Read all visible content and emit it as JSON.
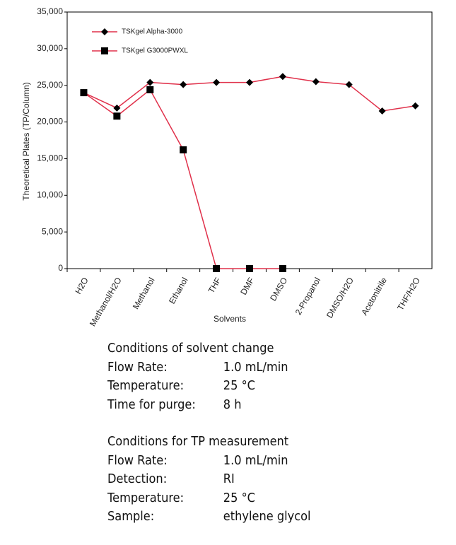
{
  "chart_data": {
    "type": "line",
    "y_label": "Theoretical Plates (TP/Column)",
    "x_label": "Solvents",
    "categories": [
      "H2O",
      "Methanol/H2O",
      "Methanol",
      "Ethanol",
      "THF",
      "DMF",
      "DMSO",
      "2-Propanol",
      "DMSO/H2O",
      "Acetonitrile",
      "THF/H2O"
    ],
    "series": [
      {
        "name": "TSKgel Alpha-3000",
        "color": "#e0304a",
        "marker": "diamond",
        "marker_color": "#000000",
        "values": [
          24000,
          21900,
          25400,
          25100,
          25400,
          25400,
          26200,
          25500,
          25100,
          21500,
          22200
        ]
      },
      {
        "name": "TSKgel G3000PWXL",
        "color": "#e0304a",
        "marker": "square",
        "marker_color": "#000000",
        "values": [
          24000,
          20800,
          24400,
          16200,
          0,
          0,
          0,
          null,
          null,
          null,
          null
        ]
      }
    ],
    "ylim": [
      0,
      35000
    ],
    "yticks": [
      0,
      {
        "value": 5000,
        "label": "5,000"
      },
      {
        "value": 10000,
        "label": "10,000"
      },
      {
        "value": 15000,
        "label": "15,000"
      },
      {
        "value": 20000,
        "label": "20,000"
      },
      {
        "value": 25000,
        "label": "25,000"
      },
      {
        "value": 30000,
        "label": "30,000"
      },
      {
        "value": 35000,
        "label": "35,000"
      }
    ],
    "grid": false,
    "legend": "top-left"
  },
  "conditions": [
    {
      "heading": "Conditions of solvent change",
      "rows": [
        [
          "Flow Rate:",
          "1.0 mL/min"
        ],
        [
          "Temperature:",
          "25 °C"
        ],
        [
          "Time for purge:",
          "8 h"
        ]
      ]
    },
    {
      "heading": "Conditions for TP measurement",
      "rows": [
        [
          "Flow Rate:",
          "1.0 mL/min"
        ],
        [
          "Detection:",
          "RI"
        ],
        [
          "Temperature:",
          "25 °C"
        ],
        [
          "Sample:",
          "ethylene glycol"
        ]
      ]
    }
  ]
}
